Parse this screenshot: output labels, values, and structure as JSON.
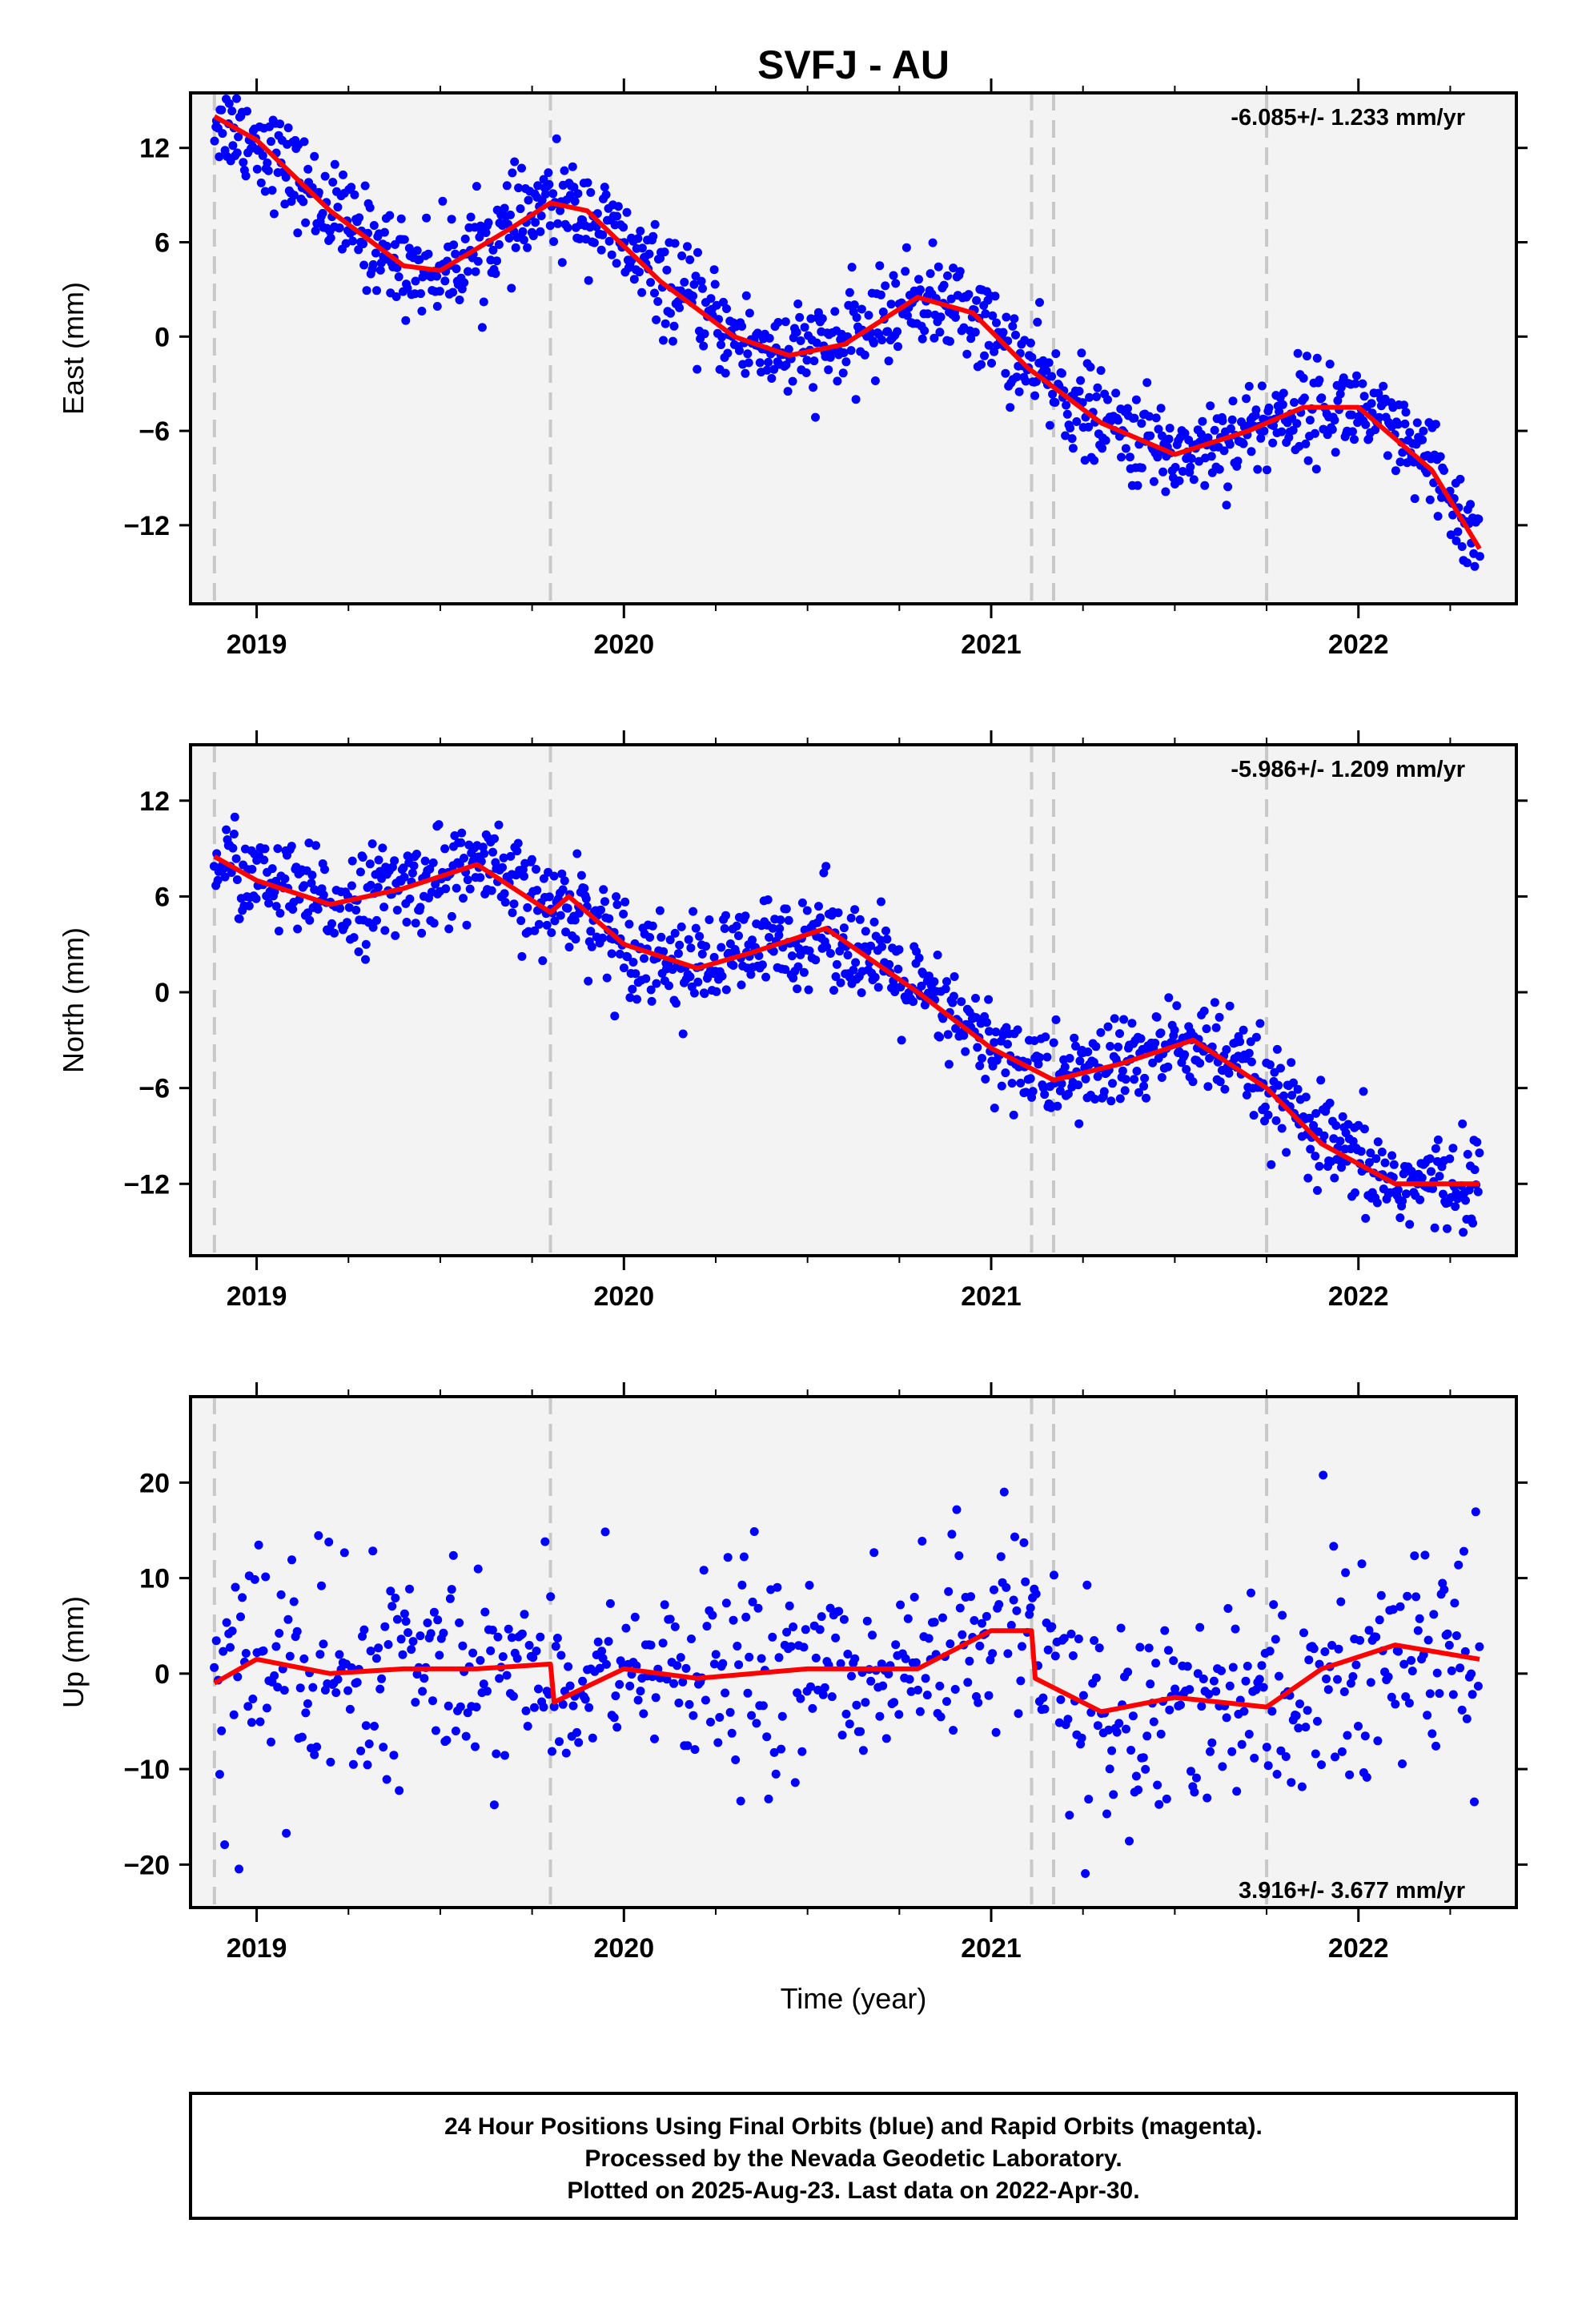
{
  "title": "SVFJ - AU",
  "xlabel": "Time (year)",
  "x_ticks": [
    "2019",
    "2020",
    "2021",
    "2022"
  ],
  "colors": {
    "points": "#0000ff",
    "fit": "#ff0000",
    "breaks": "#c8c8c8"
  },
  "caption": {
    "line1": "24 Hour Positions Using Final Orbits (blue) and Rapid Orbits (magenta).",
    "line2": "Processed by the Nevada Geodetic Laboratory.",
    "line3": "Plotted on 2025-Aug-23. Last data on 2022-Apr-30."
  },
  "chart_data": [
    {
      "type": "scatter",
      "component": "east",
      "ylabel": "East (mm)",
      "rate_label": "-6.085+/- 1.233 mm/yr",
      "rate_position": "top-right",
      "xlim": [
        2018.82,
        2022.43
      ],
      "ylim": [
        -17,
        15.5
      ],
      "y_ticks": [
        "12",
        "6",
        "0",
        "−6",
        "−12"
      ],
      "y_tick_values": [
        12,
        6,
        0,
        -6,
        -12
      ],
      "break_lines": [
        2018.885,
        2019.8,
        2021.11,
        2021.17,
        2021.75
      ],
      "trend": {
        "description": "fitted model (red) sampled at key epochs",
        "x": [
          2018.885,
          2019.0,
          2019.2,
          2019.4,
          2019.5,
          2019.7,
          2019.8,
          2019.9,
          2020.1,
          2020.3,
          2020.45,
          2020.6,
          2020.8,
          2020.95,
          2021.1,
          2021.3,
          2021.5,
          2021.7,
          2021.85,
          2022.0,
          2022.2,
          2022.33
        ],
        "y": [
          14.0,
          12.5,
          8.0,
          4.5,
          4.2,
          7.0,
          8.5,
          8.0,
          3.5,
          0.0,
          -1.2,
          -0.5,
          2.5,
          1.5,
          -2.0,
          -5.5,
          -7.5,
          -6.0,
          -4.5,
          -4.5,
          -8.5,
          -13.5
        ]
      },
      "points": {
        "description": "daily positions (blue) scattered about the fit",
        "x_range": [
          2018.885,
          2022.33
        ],
        "scatter_mm": 1.5,
        "count": 1100
      }
    },
    {
      "type": "scatter",
      "component": "north",
      "ylabel": "North (mm)",
      "rate_label": "-5.986+/- 1.209 mm/yr",
      "rate_position": "top-right",
      "xlim": [
        2018.82,
        2022.43
      ],
      "ylim": [
        -16.5,
        15.5
      ],
      "y_ticks": [
        "12",
        "6",
        "0",
        "−6",
        "−12"
      ],
      "y_tick_values": [
        12,
        6,
        0,
        -6,
        -12
      ],
      "break_lines": [
        2018.885,
        2019.8,
        2021.11,
        2021.17,
        2021.75
      ],
      "trend": {
        "description": "fitted model (red) sampled at key epochs",
        "x": [
          2018.885,
          2019.0,
          2019.2,
          2019.4,
          2019.6,
          2019.8,
          2019.85,
          2020.0,
          2020.2,
          2020.35,
          2020.55,
          2020.8,
          2021.0,
          2021.17,
          2021.35,
          2021.55,
          2021.75,
          2021.9,
          2022.1,
          2022.33
        ],
        "y": [
          8.5,
          7.0,
          5.5,
          6.5,
          8.0,
          5.0,
          6.0,
          3.0,
          1.5,
          2.5,
          4.0,
          0.0,
          -3.5,
          -5.5,
          -4.5,
          -3.0,
          -6.0,
          -9.5,
          -12.0,
          -12.0
        ]
      },
      "points": {
        "description": "daily positions (blue) scattered about the fit",
        "x_range": [
          2018.885,
          2022.33
        ],
        "scatter_mm": 1.5,
        "count": 1100
      }
    },
    {
      "type": "scatter",
      "component": "up",
      "ylabel": "Up (mm)",
      "rate_label": "3.916+/- 3.677 mm/yr",
      "rate_position": "bottom-right",
      "xlim": [
        2018.82,
        2022.43
      ],
      "ylim": [
        -24.5,
        29
      ],
      "y_ticks": [
        "20",
        "10",
        "0",
        "−10",
        "−20"
      ],
      "y_tick_values": [
        20,
        10,
        0,
        -10,
        -20
      ],
      "break_lines": [
        2018.885,
        2019.8,
        2021.11,
        2021.17,
        2021.75
      ],
      "trend": {
        "description": "fitted model (red) sampled at key epochs",
        "x": [
          2018.885,
          2019.0,
          2019.2,
          2019.4,
          2019.6,
          2019.8,
          2019.81,
          2020.0,
          2020.2,
          2020.5,
          2020.8,
          2021.0,
          2021.11,
          2021.12,
          2021.3,
          2021.5,
          2021.75,
          2021.9,
          2022.1,
          2022.33
        ],
        "y": [
          -1.0,
          1.5,
          0.0,
          0.5,
          0.5,
          1.0,
          -3.0,
          0.5,
          -0.5,
          0.5,
          0.5,
          4.5,
          4.5,
          -0.5,
          -4.0,
          -2.5,
          -3.5,
          0.5,
          3.0,
          1.5
        ]
      },
      "points": {
        "description": "daily positions (blue) scattered about the fit",
        "x_range": [
          2018.885,
          2022.33
        ],
        "scatter_mm": 5.0,
        "count": 720
      }
    }
  ]
}
